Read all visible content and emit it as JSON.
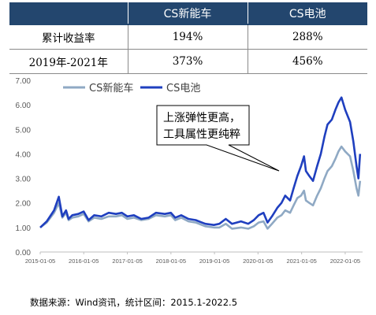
{
  "table": {
    "headers": [
      "",
      "CS新能车",
      "CS电池"
    ],
    "rows": [
      {
        "label": "累计收益率",
        "values": [
          "194%",
          "288%"
        ]
      },
      {
        "label": "2019年-2021年",
        "values": [
          "373%",
          "456%"
        ]
      }
    ]
  },
  "annotation": {
    "lines": [
      "上涨弹性更高，",
      "工具属性更纯粹"
    ]
  },
  "source": "数据来源：Wind资讯，统计区间：2015.1-2022.5",
  "colors": {
    "nev": "#8fa9c4",
    "battery": "#1f3fbf",
    "header_bg": "#23466e"
  },
  "chart_data": {
    "type": "line",
    "title": "",
    "xlabel": "",
    "ylabel": "",
    "ylim": [
      0,
      7
    ],
    "yticks": [
      "0.00",
      "1.00",
      "2.00",
      "3.00",
      "4.00",
      "5.00",
      "6.00",
      "7.00"
    ],
    "xticks": [
      "2015-01-05",
      "2016-01-05",
      "2017-01-05",
      "2018-01-05",
      "2019-01-05",
      "2020-01-05",
      "2021-01-05",
      "2022-01-05"
    ],
    "legend_position": "top-left",
    "grid": false,
    "series": [
      {
        "name": "CS新能车",
        "x": [
          "2015-01-05",
          "2015-03-01",
          "2015-05-01",
          "2015-06-10",
          "2015-07-10",
          "2015-08-10",
          "2015-08-31",
          "2015-10-01",
          "2015-11-20",
          "2016-01-05",
          "2016-02-15",
          "2016-04-01",
          "2016-06-01",
          "2016-08-01",
          "2016-10-01",
          "2016-11-20",
          "2017-01-05",
          "2017-03-01",
          "2017-05-01",
          "2017-07-01",
          "2017-09-01",
          "2017-11-15",
          "2018-01-05",
          "2018-02-10",
          "2018-04-01",
          "2018-06-01",
          "2018-08-01",
          "2018-10-20",
          "2018-12-31",
          "2019-02-15",
          "2019-04-10",
          "2019-06-01",
          "2019-08-15",
          "2019-10-15",
          "2019-12-01",
          "2020-01-10",
          "2020-02-20",
          "2020-03-25",
          "2020-05-01",
          "2020-06-15",
          "2020-07-20",
          "2020-08-20",
          "2020-09-30",
          "2020-10-30",
          "2020-11-30",
          "2020-12-31",
          "2021-01-25",
          "2021-02-10",
          "2021-03-10",
          "2021-04-10",
          "2021-05-15",
          "2021-06-15",
          "2021-07-15",
          "2021-08-10",
          "2021-09-15",
          "2021-10-15",
          "2021-11-10",
          "2021-12-05",
          "2022-01-05",
          "2022-02-15",
          "2022-03-15",
          "2022-04-10",
          "2022-04-26",
          "2022-05-10"
        ],
        "y": [
          1.0,
          1.2,
          1.6,
          2.0,
          1.4,
          1.6,
          1.3,
          1.4,
          1.45,
          1.55,
          1.25,
          1.4,
          1.35,
          1.45,
          1.45,
          1.5,
          1.35,
          1.4,
          1.3,
          1.35,
          1.5,
          1.45,
          1.5,
          1.3,
          1.4,
          1.25,
          1.2,
          1.05,
          1.0,
          1.0,
          1.15,
          0.95,
          1.0,
          0.95,
          1.05,
          1.2,
          1.25,
          0.95,
          1.15,
          1.4,
          1.5,
          1.7,
          1.6,
          1.9,
          2.2,
          2.3,
          2.5,
          2.1,
          2.0,
          1.9,
          2.3,
          2.6,
          3.0,
          3.3,
          3.5,
          3.8,
          4.1,
          4.3,
          4.1,
          3.9,
          3.3,
          2.6,
          2.3,
          2.9
        ]
      },
      {
        "name": "CS电池",
        "x": [
          "2015-01-05",
          "2015-03-01",
          "2015-05-01",
          "2015-06-10",
          "2015-07-10",
          "2015-08-10",
          "2015-08-31",
          "2015-10-01",
          "2015-11-20",
          "2016-01-05",
          "2016-02-15",
          "2016-04-01",
          "2016-06-01",
          "2016-08-01",
          "2016-10-01",
          "2016-11-20",
          "2017-01-05",
          "2017-03-01",
          "2017-05-01",
          "2017-07-01",
          "2017-09-01",
          "2017-11-15",
          "2018-01-05",
          "2018-02-10",
          "2018-04-01",
          "2018-06-01",
          "2018-08-01",
          "2018-10-20",
          "2018-12-31",
          "2019-02-15",
          "2019-04-10",
          "2019-06-01",
          "2019-08-15",
          "2019-10-15",
          "2019-12-01",
          "2020-01-10",
          "2020-02-20",
          "2020-03-25",
          "2020-05-01",
          "2020-06-15",
          "2020-07-20",
          "2020-08-20",
          "2020-09-30",
          "2020-10-30",
          "2020-11-30",
          "2020-12-31",
          "2021-01-25",
          "2021-02-10",
          "2021-03-10",
          "2021-04-10",
          "2021-05-15",
          "2021-06-15",
          "2021-07-15",
          "2021-08-10",
          "2021-09-15",
          "2021-10-15",
          "2021-11-10",
          "2021-12-05",
          "2022-01-05",
          "2022-02-15",
          "2022-03-15",
          "2022-04-10",
          "2022-04-26",
          "2022-05-10"
        ],
        "y": [
          1.0,
          1.25,
          1.7,
          2.25,
          1.45,
          1.7,
          1.35,
          1.5,
          1.55,
          1.65,
          1.3,
          1.5,
          1.45,
          1.6,
          1.55,
          1.6,
          1.45,
          1.5,
          1.35,
          1.4,
          1.6,
          1.55,
          1.6,
          1.4,
          1.5,
          1.35,
          1.3,
          1.15,
          1.1,
          1.15,
          1.35,
          1.15,
          1.25,
          1.15,
          1.3,
          1.5,
          1.6,
          1.2,
          1.45,
          1.8,
          2.0,
          2.3,
          2.1,
          2.6,
          3.1,
          3.5,
          3.9,
          3.3,
          3.1,
          2.9,
          3.5,
          4.0,
          4.7,
          5.2,
          5.4,
          5.8,
          6.1,
          6.3,
          5.8,
          5.3,
          4.5,
          3.5,
          3.0,
          4.0
        ]
      }
    ]
  }
}
